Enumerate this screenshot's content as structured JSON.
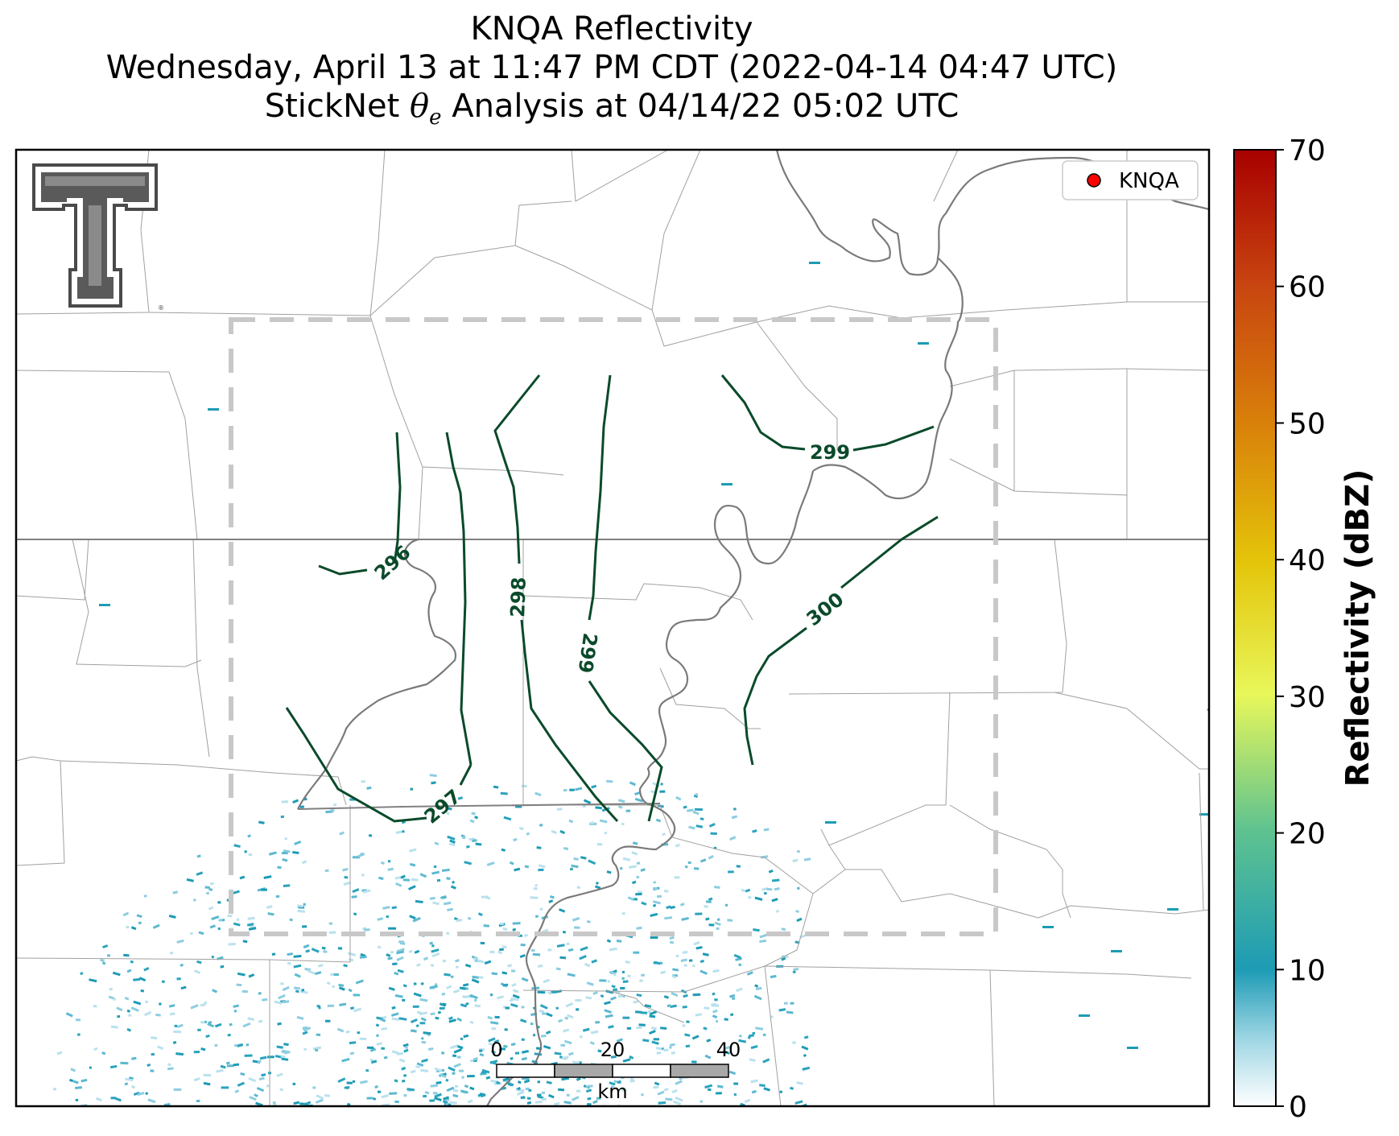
{
  "title": {
    "line1": "KNQA Reflectivity",
    "line2": "Wednesday, April 13 at 11:47 PM CDT (2022-04-14 04:47 UTC)",
    "line3_prefix": "StickNet ",
    "line3_symbol": "θ",
    "line3_subscript": "e",
    "line3_suffix": " Analysis at 04/14/22 05:02 UTC"
  },
  "legend": {
    "entries": [
      {
        "label": "KNQA",
        "marker_color": "#ff0000"
      }
    ]
  },
  "logo": {
    "name": "texas-tech-double-t-logo"
  },
  "contours": {
    "color": "#0a4a2a",
    "labels": [
      "296",
      "297",
      "298",
      "299",
      "299",
      "300"
    ]
  },
  "colorbar": {
    "title": "Reflectivity (dBZ)",
    "ticks": [
      "0",
      "10",
      "20",
      "30",
      "40",
      "50",
      "60",
      "70"
    ],
    "min": 0,
    "max": 70,
    "colors": [
      "#ffffff",
      "#1d9bb5",
      "#5fc38f",
      "#e8f75a",
      "#e4c40a",
      "#d9820a",
      "#c84410",
      "#a80000"
    ]
  },
  "scale_bar": {
    "ticks": [
      "0",
      "20",
      "40"
    ],
    "unit": "km"
  },
  "analysis_box": {
    "style": "dashed",
    "color": "#c8c8c8"
  },
  "map_colors": {
    "state_border": "#808080",
    "county_border": "#a0a0a0",
    "river": "#7a7a7a",
    "reflectivity_low": "#1d9bb5"
  }
}
